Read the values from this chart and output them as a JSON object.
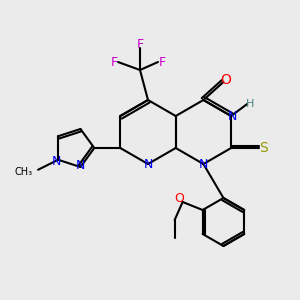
{
  "bg_color": "#ebebeb",
  "bond_color": "#000000",
  "bond_lw": 1.5,
  "atom_colors": {
    "N": "#0000ff",
    "O": "#ff0000",
    "S": "#999900",
    "F": "#cc00cc",
    "H": "#4a8080",
    "C": "#000000"
  },
  "font_size": 9,
  "font_size_small": 8
}
